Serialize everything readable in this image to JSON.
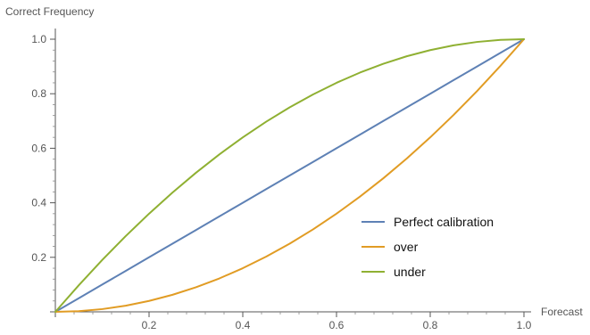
{
  "chart_data": {
    "type": "line",
    "xlabel": "Forecast",
    "ylabel": "Correct Frequency",
    "xlim": [
      0,
      1
    ],
    "ylim": [
      0,
      1
    ],
    "x_ticks": [
      0.2,
      0.4,
      0.6,
      0.8,
      1.0
    ],
    "x_tick_labels": [
      "0.2",
      "0.4",
      "0.6",
      "0.8",
      "1.0"
    ],
    "y_ticks": [
      0.2,
      0.4,
      0.6,
      0.8,
      1.0
    ],
    "y_tick_labels": [
      "0.2",
      "0.4",
      "0.6",
      "0.8",
      "1.0"
    ],
    "grid": false,
    "legend_position": "bottom-right",
    "x": [
      0,
      0.05,
      0.1,
      0.15,
      0.2,
      0.25,
      0.3,
      0.35,
      0.4,
      0.45,
      0.5,
      0.55,
      0.6,
      0.65,
      0.7,
      0.75,
      0.8,
      0.85,
      0.9,
      0.95,
      1.0
    ],
    "series": [
      {
        "name": "Perfect calibration",
        "color": "#5E81B5",
        "values": [
          0,
          0.05,
          0.1,
          0.15,
          0.2,
          0.25,
          0.3,
          0.35,
          0.4,
          0.45,
          0.5,
          0.55,
          0.6,
          0.65,
          0.7,
          0.75,
          0.8,
          0.85,
          0.9,
          0.95,
          1.0
        ]
      },
      {
        "name": "over",
        "color": "#E19C24",
        "values": [
          0,
          0.0025,
          0.01,
          0.0225,
          0.04,
          0.0625,
          0.09,
          0.1225,
          0.16,
          0.2025,
          0.25,
          0.3025,
          0.36,
          0.4225,
          0.49,
          0.5625,
          0.64,
          0.7225,
          0.81,
          0.9025,
          1.0
        ]
      },
      {
        "name": "under",
        "color": "#8FB032",
        "values": [
          0,
          0.0975,
          0.19,
          0.2775,
          0.36,
          0.4375,
          0.51,
          0.5775,
          0.64,
          0.6975,
          0.75,
          0.7975,
          0.84,
          0.8775,
          0.91,
          0.9375,
          0.96,
          0.9775,
          0.99,
          0.9975,
          1.0
        ]
      }
    ]
  }
}
